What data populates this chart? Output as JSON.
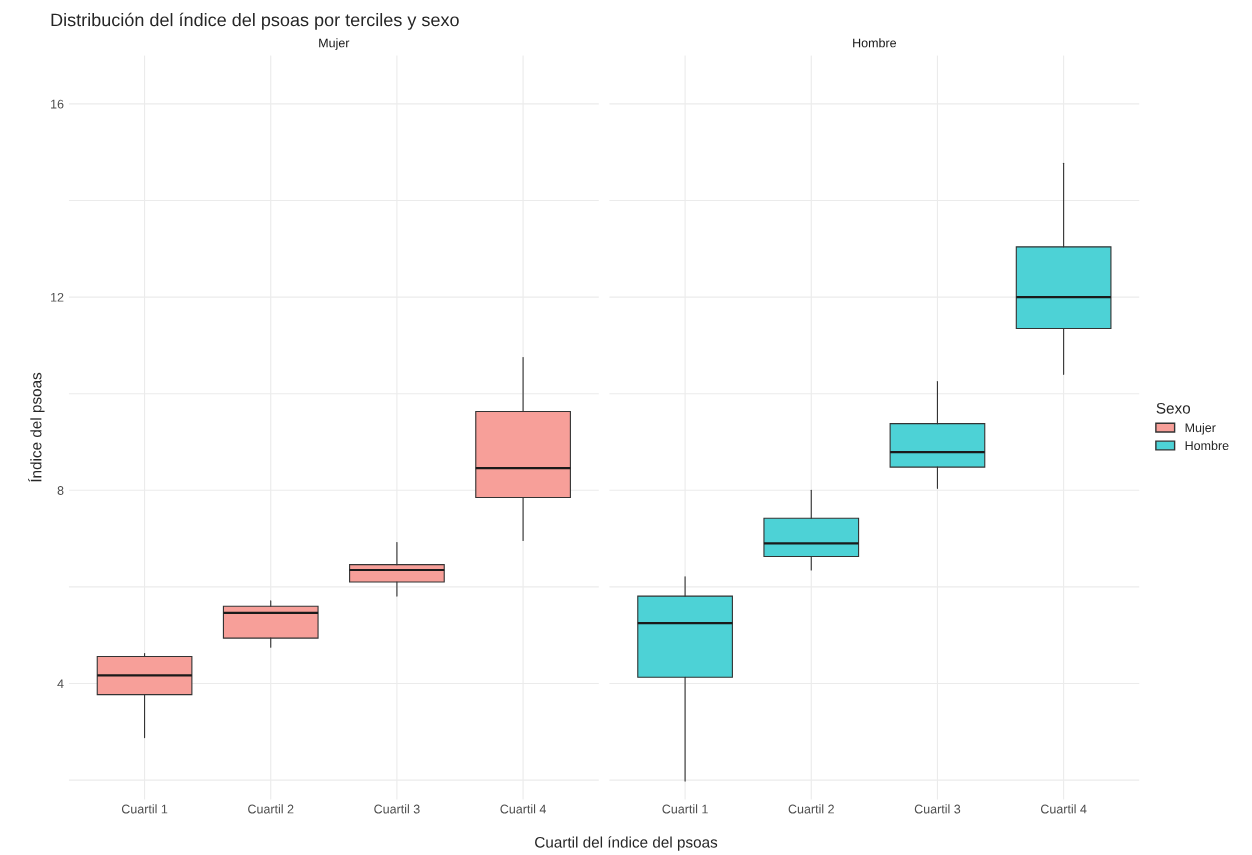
{
  "chart_data": [
    {
      "type": "box",
      "title": "Distribución del índice del psoas por terciles y sexo",
      "subtitle": "Mujer",
      "xlabel": "Cuartil del índice del psoas",
      "ylabel": "Índice del psoas",
      "categories": [
        "Cuartil 1",
        "Cuartil 2",
        "Cuartil 3",
        "Cuartil 4"
      ],
      "ylim": [
        1.6,
        17.0
      ],
      "yticks": [
        {
          "value": 2,
          "label": null
        },
        4,
        {
          "value": 6,
          "label": null
        },
        8,
        {
          "value": 10,
          "label": null
        },
        12,
        {
          "value": 14,
          "label": null
        },
        16
      ],
      "grid": true,
      "series": [
        {
          "name": "Mujer",
          "color": "#f79f99",
          "boxes": [
            {
              "low": 2.88,
              "q1": 3.77,
              "median": 4.17,
              "q3": 4.56,
              "high": 4.62
            },
            {
              "low": 4.75,
              "q1": 4.94,
              "median": 5.46,
              "q3": 5.6,
              "high": 5.71
            },
            {
              "low": 5.81,
              "q1": 6.1,
              "median": 6.35,
              "q3": 6.46,
              "high": 6.92
            },
            {
              "low": 6.96,
              "q1": 7.85,
              "median": 8.46,
              "q3": 9.63,
              "high": 10.75
            }
          ]
        }
      ]
    },
    {
      "type": "box",
      "subtitle": "Hombre",
      "legend_title": "Sexo",
      "legend": "right",
      "tick_labels": "x",
      "categories": [
        "Cuartil 1",
        "Cuartil 2",
        "Cuartil 3",
        "Cuartil 4"
      ],
      "ylim": [
        1.6,
        17.0
      ],
      "yticks": [
        {
          "value": 2,
          "label": null
        },
        4,
        {
          "value": 6,
          "label": null
        },
        8,
        {
          "value": 10,
          "label": null
        },
        12,
        {
          "value": 14,
          "label": null
        },
        16
      ],
      "grid": true,
      "series": [
        {
          "name": "Hombre",
          "color": "#4dd2d6",
          "boxes": [
            {
              "low": 1.98,
              "q1": 4.13,
              "median": 5.25,
              "q3": 5.81,
              "high": 6.21
            },
            {
              "low": 6.35,
              "q1": 6.63,
              "median": 6.9,
              "q3": 7.42,
              "high": 8.0
            },
            {
              "low": 8.04,
              "q1": 8.48,
              "median": 8.79,
              "q3": 9.38,
              "high": 10.25
            },
            {
              "low": 10.4,
              "q1": 11.35,
              "median": 12.0,
              "q3": 13.04,
              "high": 14.77
            }
          ]
        }
      ]
    }
  ]
}
